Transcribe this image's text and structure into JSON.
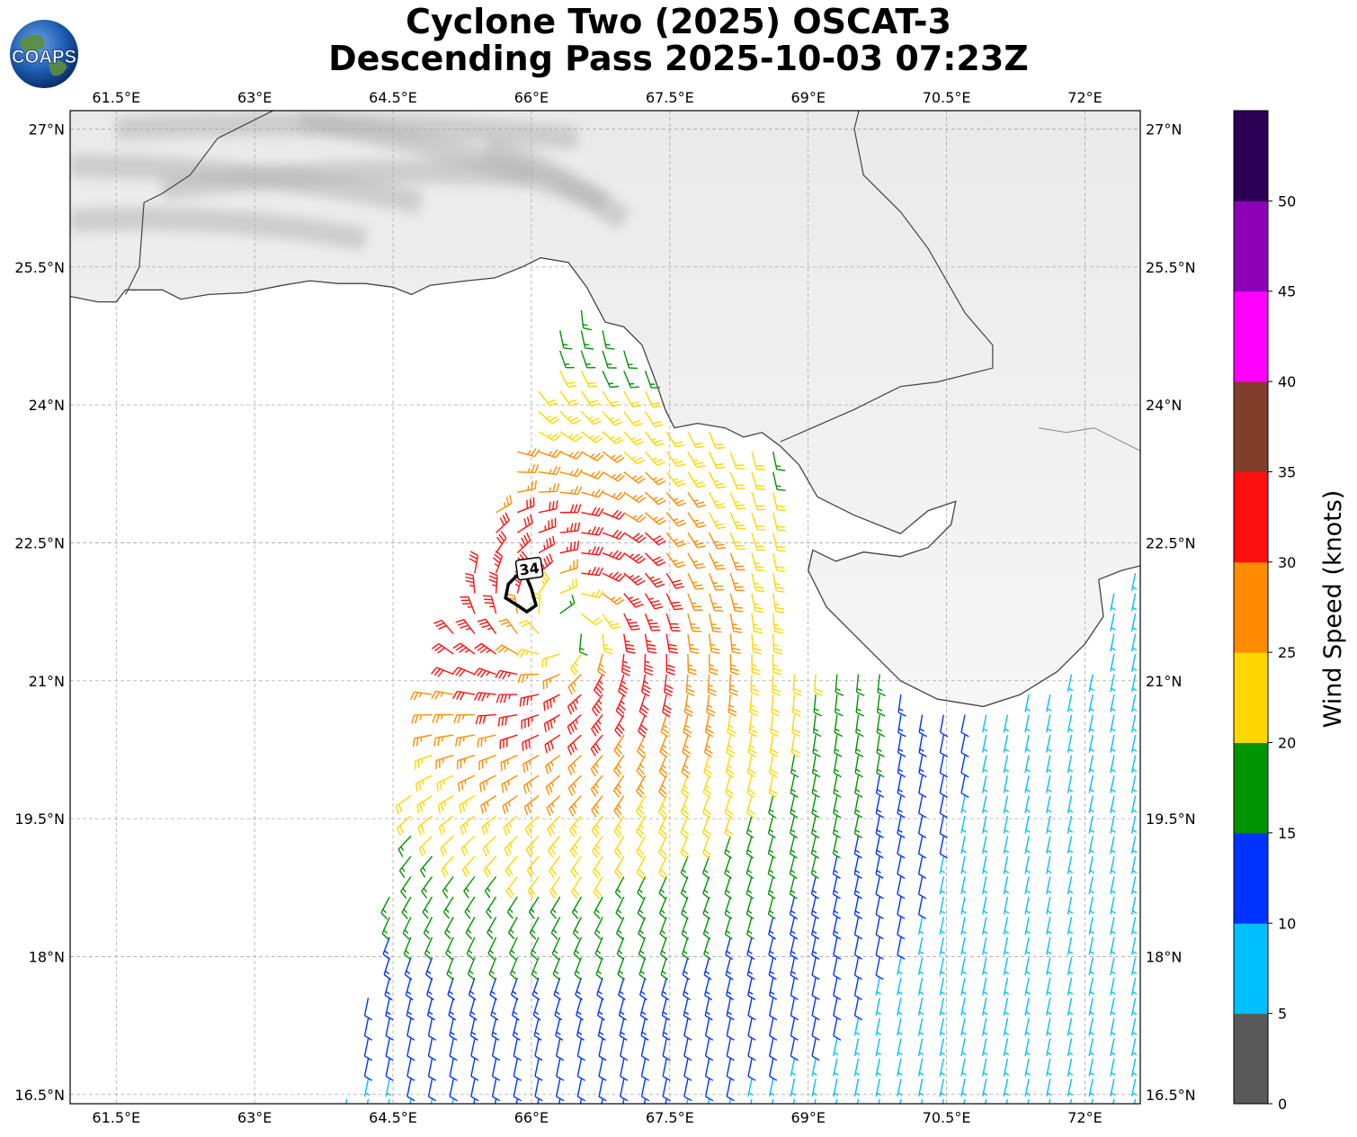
{
  "title": {
    "line1": "Cyclone Two (2025) OSCAT-3",
    "line2": "Descending Pass 2025-10-03 07:23Z"
  },
  "logo": {
    "text": "COAPS",
    "icon": "globe-logo-icon"
  },
  "map": {
    "lon_range": [
      61.0,
      72.6
    ],
    "lat_range": [
      16.4,
      27.2
    ],
    "lon_ticks": [
      {
        "value": 61.5,
        "label": "61.5°E"
      },
      {
        "value": 63.0,
        "label": "63°E"
      },
      {
        "value": 64.5,
        "label": "64.5°E"
      },
      {
        "value": 66.0,
        "label": "66°E"
      },
      {
        "value": 67.5,
        "label": "67.5°E"
      },
      {
        "value": 69.0,
        "label": "69°E"
      },
      {
        "value": 70.5,
        "label": "70.5°E"
      },
      {
        "value": 72.0,
        "label": "72°E"
      }
    ],
    "lat_ticks": [
      {
        "value": 27.0,
        "label": "27°N"
      },
      {
        "value": 25.5,
        "label": "25.5°N"
      },
      {
        "value": 24.0,
        "label": "24°N"
      },
      {
        "value": 22.5,
        "label": "22.5°N"
      },
      {
        "value": 21.0,
        "label": "21°N"
      },
      {
        "value": 19.5,
        "label": "19.5°N"
      },
      {
        "value": 18.0,
        "label": "18°N"
      },
      {
        "value": 16.5,
        "label": "16.5°N"
      }
    ],
    "grid": true,
    "storm_center": {
      "lon": 66.35,
      "lat": 21.6
    },
    "wind_radius_label": "34",
    "wind_radius_label_pos": {
      "lon": 65.98,
      "lat": 22.2
    },
    "wind_radius_contour": [
      [
        65.85,
        22.15
      ],
      [
        65.75,
        22.05
      ],
      [
        65.72,
        21.9
      ],
      [
        65.85,
        21.82
      ],
      [
        65.95,
        21.75
      ],
      [
        66.05,
        21.82
      ],
      [
        66.0,
        22.0
      ],
      [
        65.95,
        22.12
      ],
      [
        65.85,
        22.15
      ]
    ],
    "coastline": [
      [
        61.0,
        25.18
      ],
      [
        61.3,
        25.12
      ],
      [
        61.5,
        25.12
      ],
      [
        61.6,
        25.25
      ],
      [
        62.0,
        25.25
      ],
      [
        62.2,
        25.15
      ],
      [
        62.5,
        25.2
      ],
      [
        62.9,
        25.22
      ],
      [
        63.3,
        25.3
      ],
      [
        63.6,
        25.35
      ],
      [
        63.9,
        25.32
      ],
      [
        64.2,
        25.32
      ],
      [
        64.5,
        25.28
      ],
      [
        64.7,
        25.2
      ],
      [
        64.9,
        25.3
      ],
      [
        65.3,
        25.35
      ],
      [
        65.6,
        25.38
      ],
      [
        65.9,
        25.5
      ],
      [
        66.1,
        25.6
      ],
      [
        66.4,
        25.55
      ],
      [
        66.6,
        25.28
      ],
      [
        66.8,
        24.9
      ],
      [
        67.0,
        24.85
      ],
      [
        67.2,
        24.65
      ],
      [
        67.35,
        24.25
      ],
      [
        67.45,
        23.95
      ],
      [
        67.55,
        23.75
      ],
      [
        67.8,
        23.8
      ],
      [
        68.1,
        23.75
      ],
      [
        68.3,
        23.65
      ],
      [
        68.5,
        23.7
      ],
      [
        68.7,
        23.55
      ],
      [
        68.9,
        23.35
      ],
      [
        69.1,
        23.0
      ],
      [
        69.5,
        22.8
      ],
      [
        70.0,
        22.6
      ],
      [
        70.3,
        22.85
      ],
      [
        70.6,
        22.95
      ],
      [
        70.55,
        22.7
      ],
      [
        70.3,
        22.45
      ],
      [
        70.0,
        22.35
      ],
      [
        69.6,
        22.4
      ],
      [
        69.3,
        22.3
      ],
      [
        69.05,
        22.42
      ],
      [
        69.0,
        22.2
      ],
      [
        69.2,
        21.8
      ],
      [
        69.6,
        21.4
      ],
      [
        70.0,
        21.0
      ],
      [
        70.4,
        20.8
      ],
      [
        70.9,
        20.72
      ],
      [
        71.3,
        20.85
      ],
      [
        71.7,
        21.1
      ],
      [
        72.0,
        21.4
      ],
      [
        72.2,
        21.7
      ],
      [
        72.15,
        22.1
      ],
      [
        72.4,
        22.2
      ],
      [
        72.6,
        22.25
      ]
    ],
    "border_pak_ind": [
      [
        68.7,
        23.6
      ],
      [
        69.5,
        23.95
      ],
      [
        70.0,
        24.2
      ],
      [
        70.4,
        24.25
      ],
      [
        71.0,
        24.4
      ],
      [
        71.0,
        24.65
      ],
      [
        70.7,
        25.0
      ],
      [
        70.3,
        25.7
      ],
      [
        70.0,
        26.1
      ],
      [
        69.6,
        26.5
      ],
      [
        69.5,
        27.0
      ],
      [
        69.55,
        27.2
      ]
    ],
    "border_iran_pak": [
      [
        61.6,
        25.2
      ],
      [
        61.75,
        25.5
      ],
      [
        61.8,
        26.2
      ],
      [
        62.0,
        26.3
      ],
      [
        62.3,
        26.5
      ],
      [
        62.6,
        26.9
      ],
      [
        63.2,
        27.2
      ]
    ],
    "border_internal": [
      [
        71.5,
        23.75
      ],
      [
        71.8,
        23.7
      ],
      [
        72.1,
        23.75
      ],
      [
        72.6,
        23.5
      ]
    ]
  },
  "colorbar": {
    "title": "Wind Speed (knots)",
    "bins": [
      {
        "min": 0,
        "max": 5,
        "color": "#595959"
      },
      {
        "min": 5,
        "max": 10,
        "color": "#00bfff"
      },
      {
        "min": 10,
        "max": 15,
        "color": "#0033ff"
      },
      {
        "min": 15,
        "max": 20,
        "color": "#009400"
      },
      {
        "min": 20,
        "max": 25,
        "color": "#ffd700"
      },
      {
        "min": 25,
        "max": 30,
        "color": "#ff8c00"
      },
      {
        "min": 30,
        "max": 35,
        "color": "#ff1010"
      },
      {
        "min": 35,
        "max": 40,
        "color": "#7f3f2a"
      },
      {
        "min": 40,
        "max": 45,
        "color": "#ff00ff"
      },
      {
        "min": 45,
        "max": 50,
        "color": "#8b00b8"
      },
      {
        "min": 50,
        "max": 55,
        "color": "#2b0055"
      }
    ],
    "tick_labels": [
      "0",
      "5",
      "10",
      "15",
      "20",
      "25",
      "30",
      "35",
      "40",
      "45",
      "50"
    ]
  }
}
